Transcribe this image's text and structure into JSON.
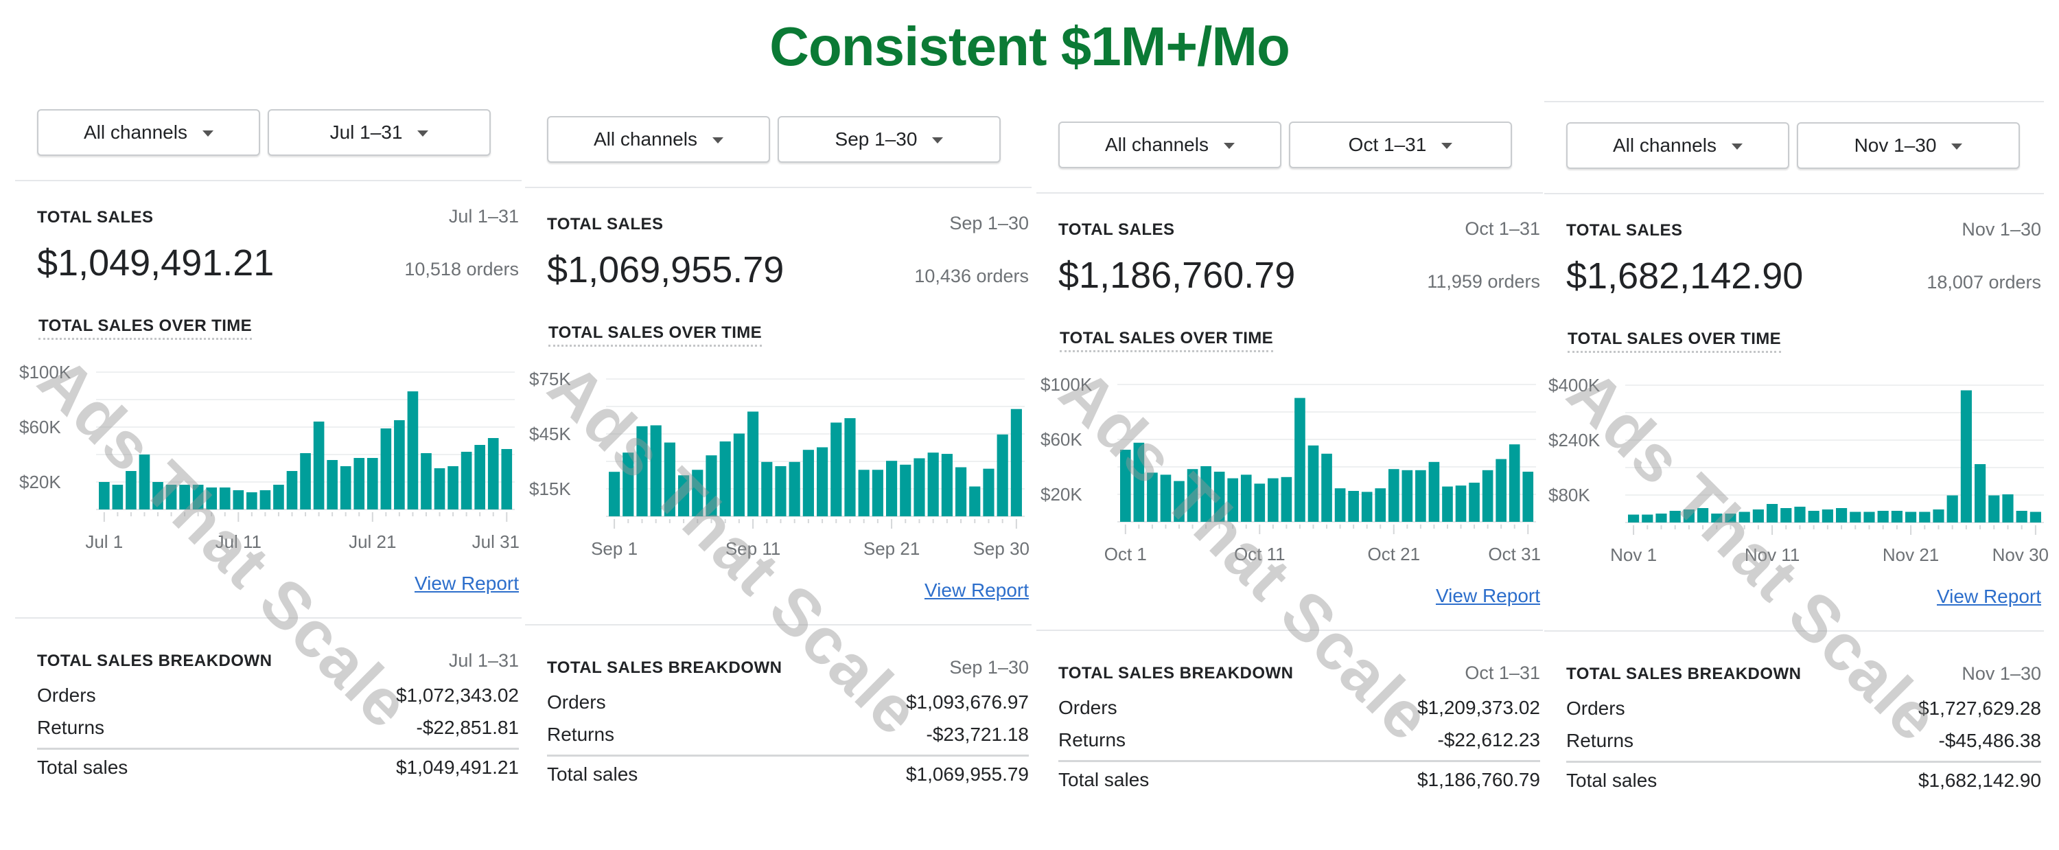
{
  "title": "Consistent $1M+/Mo",
  "watermark": "Ads That Scale",
  "colors": {
    "title": "#0b7a35",
    "bar": "#009e9a",
    "link": "#2c6ecb",
    "grid": "#eef0f1"
  },
  "labels": {
    "total_sales": "TOTAL SALES",
    "over_time": "TOTAL SALES OVER TIME",
    "view_report": "View Report",
    "breakdown": "TOTAL SALES BREAKDOWN",
    "orders": "Orders",
    "returns": "Returns",
    "total_sales_row": "Total sales"
  },
  "panels": [
    {
      "channel": "All channels",
      "range": "Jul 1–31",
      "total": "$1,049,491.21",
      "orders_count": "10,518 orders",
      "breakdown": {
        "orders": "$1,072,343.02",
        "returns": "-$22,851.81",
        "total": "$1,049,491.21"
      }
    },
    {
      "channel": "All channels",
      "range": "Sep 1–30",
      "total": "$1,069,955.79",
      "orders_count": "10,436 orders",
      "breakdown": {
        "orders": "$1,093,676.97",
        "returns": "-$23,721.18",
        "total": "$1,069,955.79"
      }
    },
    {
      "channel": "All channels",
      "range": "Oct 1–31",
      "total": "$1,186,760.79",
      "orders_count": "11,959 orders",
      "breakdown": {
        "orders": "$1,209,373.02",
        "returns": "-$22,612.23",
        "total": "$1,186,760.79"
      }
    },
    {
      "channel": "All channels",
      "range": "Nov 1–30",
      "total": "$1,682,142.90",
      "orders_count": "18,007 orders",
      "breakdown": {
        "orders": "$1,727,629.28",
        "returns": "-$45,486.38",
        "total": "$1,682,142.90"
      }
    }
  ],
  "chart_data": [
    {
      "type": "bar",
      "title": "TOTAL SALES OVER TIME",
      "xlabel": "",
      "ylabel": "",
      "unit": "USD thousands",
      "grid": true,
      "ylim": [
        0,
        100
      ],
      "gridlines": [
        20,
        40,
        60,
        80,
        100
      ],
      "yticks": [
        {
          "v": 100,
          "label": "$100K"
        },
        {
          "v": 60,
          "label": "$60K"
        },
        {
          "v": 20,
          "label": "$20K"
        }
      ],
      "xticks": [
        {
          "i": 0,
          "label": "Jul 1"
        },
        {
          "i": 10,
          "label": "Jul 11"
        },
        {
          "i": 20,
          "label": "Jul 21"
        },
        {
          "i": 30,
          "label": "Jul 31"
        }
      ],
      "values": [
        20,
        18,
        28,
        40,
        20,
        18,
        18,
        18,
        16,
        16,
        14,
        12.5,
        14,
        18,
        28,
        41,
        64,
        36,
        31.5,
        37.5,
        37.5,
        59,
        65,
        86,
        41,
        30,
        31.5,
        42,
        47,
        52,
        44
      ]
    },
    {
      "type": "bar",
      "title": "TOTAL SALES OVER TIME",
      "xlabel": "",
      "ylabel": "",
      "unit": "USD thousands",
      "grid": true,
      "ylim": [
        0,
        75
      ],
      "gridlines": [
        15,
        30,
        45,
        60,
        75
      ],
      "yticks": [
        {
          "v": 75,
          "label": "$75K"
        },
        {
          "v": 45,
          "label": "$45K"
        },
        {
          "v": 15,
          "label": "$15K"
        }
      ],
      "xticks": [
        {
          "i": 0,
          "label": "Sep 1"
        },
        {
          "i": 10,
          "label": "Sep 11"
        },
        {
          "i": 20,
          "label": "Sep 21"
        },
        {
          "i": 29,
          "label": "Sep 30"
        }
      ],
      "values": [
        24.3,
        34.8,
        49.2,
        49.7,
        40.3,
        22.4,
        25.4,
        33.3,
        40.9,
        45.2,
        57.2,
        29.7,
        27.4,
        29.7,
        36.3,
        37.7,
        51.2,
        53.6,
        25.4,
        25.4,
        30.3,
        28.2,
        31.7,
        34.8,
        34.1,
        26.8,
        16.3,
        26,
        44.7,
        58.6
      ]
    },
    {
      "type": "bar",
      "title": "TOTAL SALES OVER TIME",
      "xlabel": "",
      "ylabel": "",
      "unit": "USD thousands",
      "grid": true,
      "ylim": [
        0,
        100
      ],
      "gridlines": [
        20,
        40,
        60,
        80,
        100
      ],
      "yticks": [
        {
          "v": 100,
          "label": "$100K"
        },
        {
          "v": 60,
          "label": "$60K"
        },
        {
          "v": 20,
          "label": "$20K"
        }
      ],
      "xticks": [
        {
          "i": 0,
          "label": "Oct 1"
        },
        {
          "i": 10,
          "label": "Oct 11"
        },
        {
          "i": 20,
          "label": "Oct 21"
        },
        {
          "i": 30,
          "label": "Oct 31"
        }
      ],
      "values": [
        52.5,
        57.6,
        35.8,
        34.3,
        29.7,
        38.4,
        40.5,
        36.5,
        31.7,
        34.3,
        27.8,
        31.7,
        32.6,
        90.2,
        55.6,
        49.6,
        24.4,
        22.5,
        21.8,
        24.4,
        38.4,
        37.6,
        37.6,
        43.6,
        25.7,
        26.4,
        28.5,
        37.6,
        45.7,
        56.4,
        36.5
      ]
    },
    {
      "type": "bar",
      "title": "TOTAL SALES OVER TIME",
      "xlabel": "",
      "ylabel": "",
      "unit": "USD thousands",
      "grid": true,
      "ylim": [
        0,
        400
      ],
      "gridlines": [
        80,
        160,
        240,
        320,
        400
      ],
      "yticks": [
        {
          "v": 400,
          "label": "$400K"
        },
        {
          "v": 240,
          "label": "$240K"
        },
        {
          "v": 80,
          "label": "$80K"
        }
      ],
      "xticks": [
        {
          "i": 0,
          "label": "Nov 1"
        },
        {
          "i": 10,
          "label": "Nov 11"
        },
        {
          "i": 20,
          "label": "Nov 21"
        },
        {
          "i": 29,
          "label": "Nov 30"
        }
      ],
      "values": [
        23,
        23,
        26,
        34,
        38,
        42,
        26,
        26,
        31,
        38,
        54,
        42,
        46,
        34,
        38,
        42,
        31,
        31,
        34,
        34,
        31,
        31,
        38,
        79,
        385,
        170,
        79,
        82,
        34,
        31
      ]
    }
  ]
}
